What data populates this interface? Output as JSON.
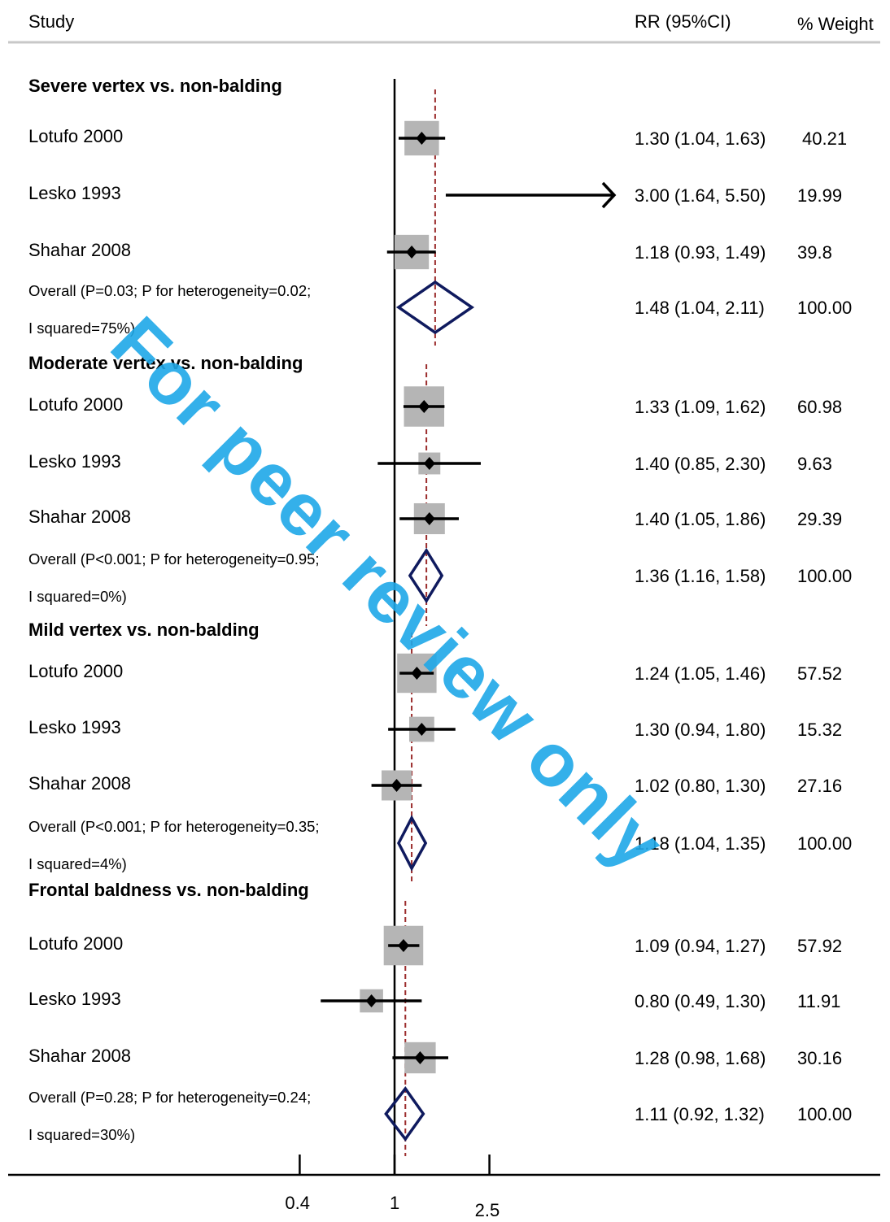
{
  "header": {
    "study": "Study",
    "rr": "RR (95%CI)",
    "weight": "% Weight"
  },
  "watermark": "For peer review only",
  "chart_data": {
    "type": "forest",
    "x_scale": "log",
    "x_ticks": [
      0.4,
      1,
      2.5
    ],
    "x_tick_labels": [
      "0.4",
      "1",
      "2.5"
    ],
    "groups": [
      {
        "title": "Severe vertex vs. non-balding",
        "studies": [
          {
            "name": "Lotufo 2000",
            "rr": 1.3,
            "lo": 1.04,
            "hi": 1.63,
            "label": "1.30 (1.04, 1.63)",
            "weight": "40.21",
            "w": 40.21
          },
          {
            "name": "Lesko 1993",
            "rr": 3.0,
            "lo": 1.64,
            "hi": 5.5,
            "label": "3.00 (1.64, 5.50)",
            "weight": "19.99",
            "w": 19.99,
            "truncated": true
          },
          {
            "name": "Shahar 2008",
            "rr": 1.18,
            "lo": 0.93,
            "hi": 1.49,
            "label": "1.18 (0.93, 1.49)",
            "weight": "39.8",
            "w": 39.8
          }
        ],
        "overall": {
          "line1": "Overall (P=0.03; P for heterogeneity=0.02;",
          "line2": "I squared=75%)",
          "rr": 1.48,
          "lo": 1.04,
          "hi": 2.11,
          "label": "1.48 (1.04, 2.11)",
          "weight": "100.00"
        }
      },
      {
        "title": "Moderate vertex vs. non-balding",
        "studies": [
          {
            "name": "Lotufo 2000",
            "rr": 1.33,
            "lo": 1.09,
            "hi": 1.62,
            "label": "1.33 (1.09, 1.62)",
            "weight": "60.98",
            "w": 60.98
          },
          {
            "name": "Lesko 1993",
            "rr": 1.4,
            "lo": 0.85,
            "hi": 2.3,
            "label": "1.40 (0.85, 2.30)",
            "weight": "9.63",
            "w": 9.63
          },
          {
            "name": "Shahar 2008",
            "rr": 1.4,
            "lo": 1.05,
            "hi": 1.86,
            "label": "1.40 (1.05, 1.86)",
            "weight": "29.39",
            "w": 29.39
          }
        ],
        "overall": {
          "line1": "Overall (P<0.001; P for heterogeneity=0.95;",
          "line2": "I squared=0%)",
          "rr": 1.36,
          "lo": 1.16,
          "hi": 1.58,
          "label": "1.36 (1.16, 1.58)",
          "weight": "100.00"
        }
      },
      {
        "title": "Mild vertex vs. non-balding",
        "studies": [
          {
            "name": "Lotufo 2000",
            "rr": 1.24,
            "lo": 1.05,
            "hi": 1.46,
            "label": "1.24 (1.05, 1.46)",
            "weight": "57.52",
            "w": 57.52
          },
          {
            "name": "Lesko 1993",
            "rr": 1.3,
            "lo": 0.94,
            "hi": 1.8,
            "label": "1.30 (0.94, 1.80)",
            "weight": "15.32",
            "w": 15.32
          },
          {
            "name": "Shahar 2008",
            "rr": 1.02,
            "lo": 0.8,
            "hi": 1.3,
            "label": "1.02 (0.80, 1.30)",
            "weight": "27.16",
            "w": 27.16
          }
        ],
        "overall": {
          "line1": "Overall (P<0.001; P for heterogeneity=0.35;",
          "line2": "I squared=4%)",
          "rr": 1.18,
          "lo": 1.04,
          "hi": 1.35,
          "label": "1.18 (1.04, 1.35)",
          "weight": "100.00"
        }
      },
      {
        "title": "Frontal baldness vs. non-balding",
        "studies": [
          {
            "name": "Lotufo 2000",
            "rr": 1.09,
            "lo": 0.94,
            "hi": 1.27,
            "label": "1.09 (0.94, 1.27)",
            "weight": "57.92",
            "w": 57.92
          },
          {
            "name": "Lesko 1993",
            "rr": 0.8,
            "lo": 0.49,
            "hi": 1.3,
            "label": "0.80 (0.49, 1.30)",
            "weight": "11.91",
            "w": 11.91
          },
          {
            "name": "Shahar 2008",
            "rr": 1.28,
            "lo": 0.98,
            "hi": 1.68,
            "label": "1.28 (0.98, 1.68)",
            "weight": "30.16",
            "w": 30.16
          }
        ],
        "overall": {
          "line1": "Overall (P=0.28; P for heterogeneity=0.24;",
          "line2": "I squared=30%)",
          "rr": 1.11,
          "lo": 0.92,
          "hi": 1.32,
          "label": "1.11 (0.92, 1.32)",
          "weight": "100.00"
        }
      }
    ]
  }
}
